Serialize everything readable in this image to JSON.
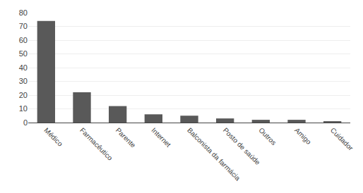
{
  "chart_data": {
    "type": "bar",
    "categories": [
      "Médico",
      "Farmacêutico",
      "Parente",
      "Internet",
      "Balconista da farmácia",
      "Posto de saúde",
      "Outros",
      "Amigo",
      "Cuidador"
    ],
    "values": [
      74,
      22,
      12,
      6,
      5,
      3,
      2,
      2,
      1
    ],
    "color": "#595959",
    "ylim": [
      0,
      80
    ],
    "yticks": [
      0,
      10,
      20,
      30,
      40,
      50,
      60,
      70,
      80
    ],
    "grid": true
  }
}
